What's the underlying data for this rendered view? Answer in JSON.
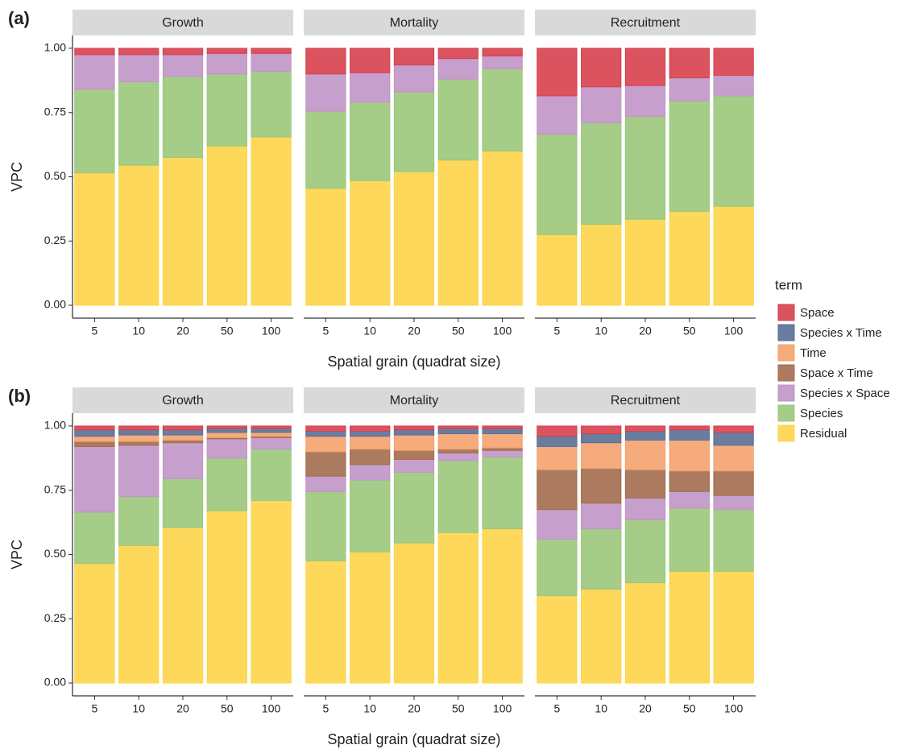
{
  "chart_data": [
    {
      "type": "bar",
      "stacked": true,
      "panel": "(a)",
      "title": "Growth",
      "y_label": "VPC",
      "categories": [
        "5",
        "10",
        "20",
        "50",
        "100"
      ],
      "series": [
        {
          "name": "Space",
          "color": "#d6404e",
          "values": [
            0.025,
            0.025,
            0.025,
            0.02,
            0.02
          ]
        },
        {
          "name": "Species x Space",
          "color": "#c195c6",
          "values": [
            0.135,
            0.105,
            0.085,
            0.08,
            0.07
          ]
        },
        {
          "name": "Species",
          "color": "#9bc87b",
          "values": [
            0.325,
            0.325,
            0.315,
            0.28,
            0.255
          ]
        },
        {
          "name": "Residual",
          "color": "#fdd449",
          "values": [
            0.515,
            0.545,
            0.575,
            0.62,
            0.655
          ]
        }
      ],
      "ylim": [
        -0.05,
        1.05
      ],
      "yticks": [
        {
          "value": 0,
          "label": "0.00"
        },
        {
          "value": 0.25,
          "label": "0.25"
        },
        {
          "value": 0.5,
          "label": "0.50"
        },
        {
          "value": 0.75,
          "label": "0.75"
        },
        {
          "value": 1,
          "label": "1.00"
        }
      ]
    },
    {
      "type": "bar",
      "stacked": true,
      "title": "Mortality",
      "x_label": "Spatial grain (quadrat size)",
      "categories": [
        "5",
        "10",
        "20",
        "50",
        "100"
      ],
      "series": [
        {
          "name": "Space",
          "color": "#d6404e",
          "values": [
            0.1,
            0.095,
            0.065,
            0.04,
            0.03
          ]
        },
        {
          "name": "Species x Space",
          "color": "#c195c6",
          "values": [
            0.145,
            0.115,
            0.105,
            0.08,
            0.05
          ]
        },
        {
          "name": "Species",
          "color": "#9bc87b",
          "values": [
            0.3,
            0.305,
            0.31,
            0.315,
            0.32
          ]
        },
        {
          "name": "Residual",
          "color": "#fdd449",
          "values": [
            0.455,
            0.485,
            0.52,
            0.565,
            0.6
          ]
        }
      ],
      "ylim": [
        -0.05,
        1.05
      ]
    },
    {
      "type": "bar",
      "stacked": true,
      "title": "Recruitment",
      "categories": [
        "5",
        "10",
        "20",
        "50",
        "100"
      ],
      "series": [
        {
          "name": "Space",
          "color": "#d6404e",
          "values": [
            0.185,
            0.15,
            0.145,
            0.115,
            0.105
          ]
        },
        {
          "name": "Species x Space",
          "color": "#c195c6",
          "values": [
            0.15,
            0.14,
            0.12,
            0.09,
            0.08
          ]
        },
        {
          "name": "Species",
          "color": "#9bc87b",
          "values": [
            0.39,
            0.395,
            0.4,
            0.43,
            0.43
          ]
        },
        {
          "name": "Residual",
          "color": "#fdd449",
          "values": [
            0.275,
            0.315,
            0.335,
            0.365,
            0.385
          ]
        }
      ],
      "ylim": [
        -0.05,
        1.05
      ]
    },
    {
      "type": "bar",
      "stacked": true,
      "panel": "(b)",
      "title": "Growth",
      "y_label": "VPC",
      "legend_title": "term",
      "categories": [
        "5",
        "10",
        "20",
        "50",
        "100"
      ],
      "series": [
        {
          "name": "Space",
          "color": "#d6404e",
          "values": [
            0.015,
            0.015,
            0.015,
            0.01,
            0.01
          ]
        },
        {
          "name": "Species x Time",
          "color": "#5a6f96",
          "values": [
            0.025,
            0.02,
            0.02,
            0.015,
            0.015
          ]
        },
        {
          "name": "Time",
          "color": "#f4a26e",
          "values": [
            0.02,
            0.025,
            0.02,
            0.02,
            0.015
          ]
        },
        {
          "name": "Space x Time",
          "color": "#a36d4e",
          "values": [
            0.02,
            0.015,
            0.01,
            0.005,
            0.005
          ]
        },
        {
          "name": "Species x Space",
          "color": "#c195c6",
          "values": [
            0.255,
            0.2,
            0.14,
            0.075,
            0.045
          ]
        },
        {
          "name": "Species",
          "color": "#9bc87b",
          "values": [
            0.2,
            0.19,
            0.19,
            0.205,
            0.2
          ]
        },
        {
          "name": "Residual",
          "color": "#fdd449",
          "values": [
            0.465,
            0.535,
            0.605,
            0.67,
            0.71
          ]
        }
      ],
      "ylim": [
        -0.05,
        1.05
      ],
      "yticks": [
        {
          "value": 0,
          "label": "0.00"
        },
        {
          "value": 0.25,
          "label": "0.25"
        },
        {
          "value": 0.5,
          "label": "0.50"
        },
        {
          "value": 0.75,
          "label": "0.75"
        },
        {
          "value": 1,
          "label": "1.00"
        }
      ]
    },
    {
      "type": "bar",
      "stacked": true,
      "title": "Mortality",
      "x_label": "Spatial grain (quadrat size)",
      "categories": [
        "5",
        "10",
        "20",
        "50",
        "100"
      ],
      "series": [
        {
          "name": "Space",
          "color": "#d6404e",
          "values": [
            0.02,
            0.02,
            0.015,
            0.01,
            0.01
          ]
        },
        {
          "name": "Species x Time",
          "color": "#5a6f96",
          "values": [
            0.02,
            0.02,
            0.02,
            0.02,
            0.02
          ]
        },
        {
          "name": "Time",
          "color": "#f4a26e",
          "values": [
            0.06,
            0.05,
            0.06,
            0.06,
            0.055
          ]
        },
        {
          "name": "Space x Time",
          "color": "#a36d4e",
          "values": [
            0.095,
            0.06,
            0.035,
            0.015,
            0.01
          ]
        },
        {
          "name": "Species x Space",
          "color": "#c195c6",
          "values": [
            0.06,
            0.06,
            0.05,
            0.03,
            0.025
          ]
        },
        {
          "name": "Species",
          "color": "#9bc87b",
          "values": [
            0.27,
            0.28,
            0.275,
            0.28,
            0.28
          ]
        },
        {
          "name": "Residual",
          "color": "#fdd449",
          "values": [
            0.475,
            0.51,
            0.545,
            0.585,
            0.6
          ]
        }
      ],
      "ylim": [
        -0.05,
        1.05
      ]
    },
    {
      "type": "bar",
      "stacked": true,
      "title": "Recruitment",
      "categories": [
        "5",
        "10",
        "20",
        "50",
        "100"
      ],
      "series": [
        {
          "name": "Space",
          "color": "#d6404e",
          "values": [
            0.04,
            0.03,
            0.02,
            0.015,
            0.025
          ]
        },
        {
          "name": "Species x Time",
          "color": "#5a6f96",
          "values": [
            0.04,
            0.035,
            0.035,
            0.04,
            0.05
          ]
        },
        {
          "name": "Time",
          "color": "#f4a26e",
          "values": [
            0.09,
            0.1,
            0.115,
            0.12,
            0.1
          ]
        },
        {
          "name": "Space x Time",
          "color": "#a36d4e",
          "values": [
            0.155,
            0.135,
            0.11,
            0.08,
            0.095
          ]
        },
        {
          "name": "Species x Space",
          "color": "#c195c6",
          "values": [
            0.115,
            0.1,
            0.085,
            0.065,
            0.055
          ]
        },
        {
          "name": "Species",
          "color": "#9bc87b",
          "values": [
            0.22,
            0.235,
            0.245,
            0.245,
            0.24
          ]
        },
        {
          "name": "Residual",
          "color": "#fdd449",
          "values": [
            0.34,
            0.365,
            0.39,
            0.435,
            0.435
          ]
        }
      ],
      "ylim": [
        -0.05,
        1.05
      ]
    }
  ]
}
